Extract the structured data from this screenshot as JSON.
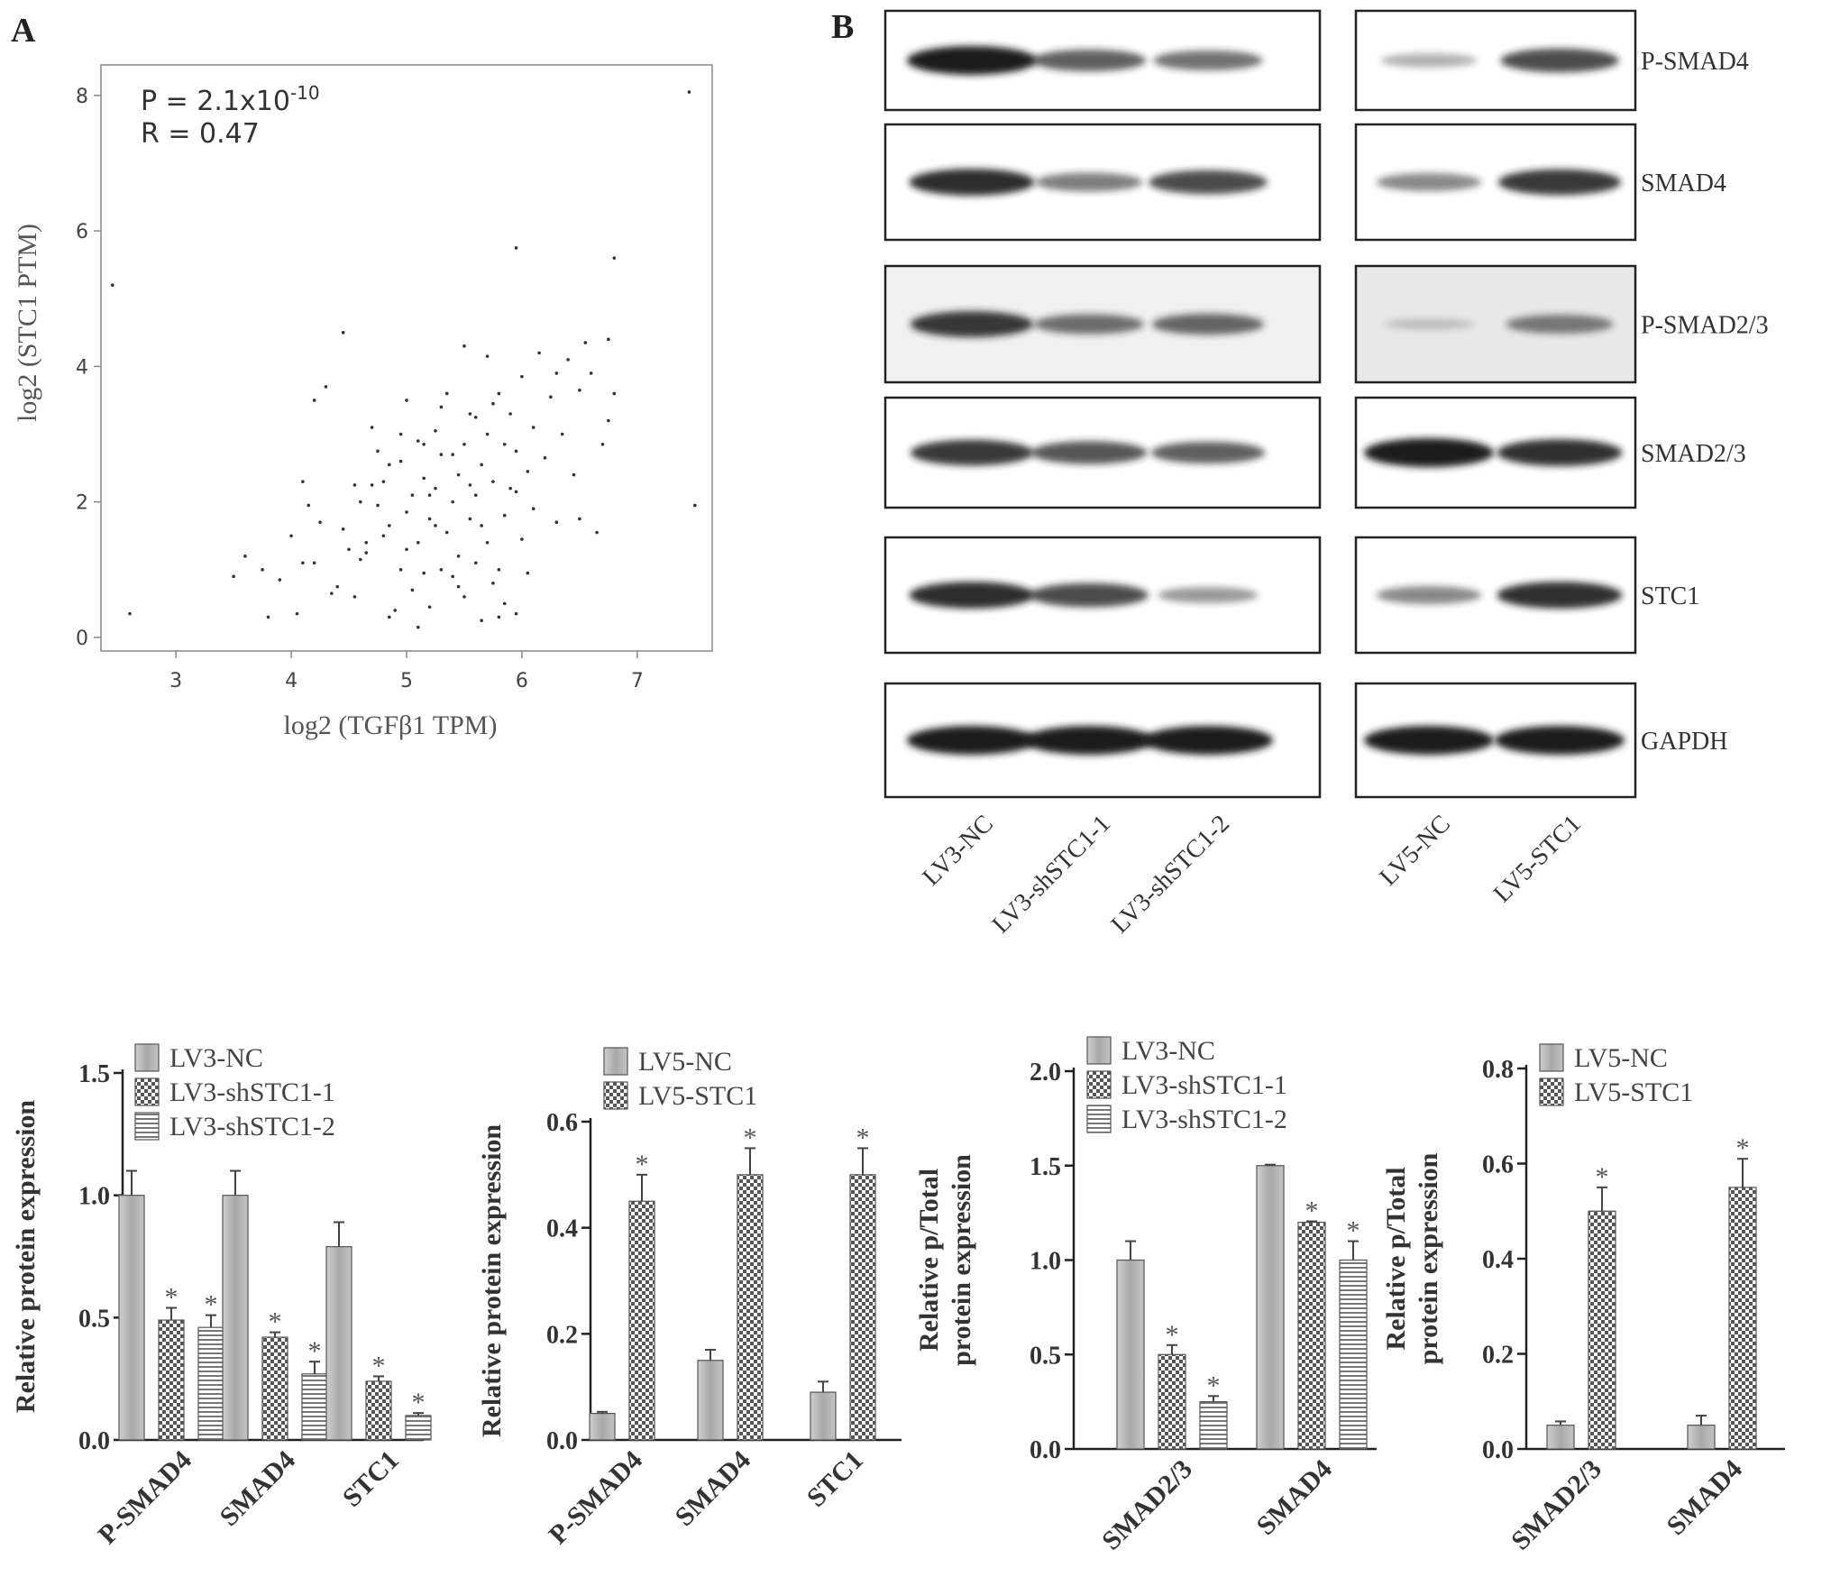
{
  "panels": {
    "a": "A",
    "b": "B"
  },
  "colors": {
    "ink": "#222222",
    "bar_nc": "#b3b3b3",
    "bar_pattern": "#6a6a6a",
    "blot_band": "#1e1e1e"
  },
  "chart_data": [
    {
      "type": "scatter",
      "ylabel": "log2 (STC1 PTM)",
      "xlabel": "log2 (TGFβ1 TPM)",
      "annotations": {
        "p_prefix": "P = 2.1x10",
        "p_exp": "-10",
        "r": "R = 0.47"
      },
      "xlim": [
        2.35,
        7.65
      ],
      "ylim": [
        -0.2,
        8.45
      ],
      "xticks": [
        3,
        4,
        5,
        6,
        7
      ],
      "yticks": [
        0,
        2,
        4,
        6,
        8
      ],
      "points": [
        [
          2.45,
          5.2
        ],
        [
          2.6,
          0.35
        ],
        [
          7.45,
          8.05
        ],
        [
          7.5,
          1.95
        ],
        [
          6.8,
          5.6
        ],
        [
          5.95,
          5.75
        ],
        [
          4.45,
          4.5
        ],
        [
          4.2,
          3.5
        ],
        [
          4.3,
          3.7
        ],
        [
          3.6,
          1.2
        ],
        [
          3.5,
          0.9
        ],
        [
          3.75,
          1.0
        ],
        [
          3.8,
          0.3
        ],
        [
          3.9,
          0.85
        ],
        [
          4.05,
          0.35
        ],
        [
          4.0,
          1.5
        ],
        [
          4.1,
          1.1
        ],
        [
          4.15,
          1.95
        ],
        [
          4.1,
          2.3
        ],
        [
          4.25,
          1.7
        ],
        [
          4.2,
          1.1
        ],
        [
          4.35,
          0.65
        ],
        [
          4.4,
          0.75
        ],
        [
          4.45,
          1.6
        ],
        [
          4.5,
          1.3
        ],
        [
          4.55,
          0.6
        ],
        [
          4.6,
          1.15
        ],
        [
          4.6,
          2.0
        ],
        [
          4.65,
          1.25
        ],
        [
          4.7,
          2.25
        ],
        [
          4.75,
          2.75
        ],
        [
          4.7,
          3.1
        ],
        [
          4.8,
          1.5
        ],
        [
          4.8,
          2.3
        ],
        [
          4.85,
          0.3
        ],
        [
          4.85,
          1.65
        ],
        [
          4.9,
          0.4
        ],
        [
          4.95,
          1.0
        ],
        [
          4.95,
          3.0
        ],
        [
          5.0,
          1.85
        ],
        [
          5.0,
          3.5
        ],
        [
          5.05,
          2.1
        ],
        [
          5.05,
          0.7
        ],
        [
          5.1,
          0.15
        ],
        [
          5.1,
          1.4
        ],
        [
          5.15,
          2.35
        ],
        [
          5.15,
          2.85
        ],
        [
          5.2,
          0.45
        ],
        [
          5.2,
          1.75
        ],
        [
          5.25,
          2.2
        ],
        [
          5.25,
          3.05
        ],
        [
          5.3,
          1.0
        ],
        [
          5.3,
          2.7
        ],
        [
          5.35,
          1.55
        ],
        [
          5.35,
          3.6
        ],
        [
          5.4,
          2.0
        ],
        [
          5.4,
          0.9
        ],
        [
          5.45,
          1.2
        ],
        [
          5.45,
          2.4
        ],
        [
          5.5,
          2.85
        ],
        [
          5.5,
          0.6
        ],
        [
          5.55,
          1.75
        ],
        [
          5.55,
          3.3
        ],
        [
          5.6,
          2.1
        ],
        [
          5.6,
          1.1
        ],
        [
          5.65,
          2.55
        ],
        [
          5.65,
          0.25
        ],
        [
          5.7,
          3.0
        ],
        [
          5.7,
          1.4
        ],
        [
          5.75,
          0.8
        ],
        [
          5.75,
          2.3
        ],
        [
          5.8,
          3.6
        ],
        [
          5.8,
          1.0
        ],
        [
          5.85,
          1.8
        ],
        [
          5.85,
          0.5
        ],
        [
          5.9,
          2.2
        ],
        [
          5.9,
          3.3
        ],
        [
          5.95,
          0.35
        ],
        [
          5.95,
          2.75
        ],
        [
          6.0,
          1.45
        ],
        [
          6.0,
          3.85
        ],
        [
          6.05,
          2.45
        ],
        [
          6.05,
          0.95
        ],
        [
          6.1,
          3.1
        ],
        [
          6.1,
          1.9
        ],
        [
          6.15,
          4.2
        ],
        [
          6.2,
          2.65
        ],
        [
          6.25,
          3.55
        ],
        [
          6.3,
          1.7
        ],
        [
          6.3,
          3.9
        ],
        [
          6.35,
          3.0
        ],
        [
          6.4,
          4.1
        ],
        [
          6.45,
          2.4
        ],
        [
          6.5,
          3.65
        ],
        [
          6.5,
          1.75
        ],
        [
          6.55,
          4.35
        ],
        [
          6.6,
          3.9
        ],
        [
          6.65,
          1.55
        ],
        [
          6.7,
          2.85
        ],
        [
          6.75,
          3.2
        ],
        [
          6.8,
          3.6
        ],
        [
          6.75,
          4.4
        ],
        [
          5.5,
          4.3
        ],
        [
          5.7,
          4.15
        ],
        [
          5.3,
          3.4
        ],
        [
          5.2,
          2.1
        ],
        [
          4.95,
          2.6
        ],
        [
          5.1,
          2.9
        ],
        [
          5.25,
          1.65
        ],
        [
          5.4,
          2.7
        ],
        [
          5.55,
          2.25
        ],
        [
          5.75,
          3.45
        ],
        [
          5.95,
          2.15
        ],
        [
          4.85,
          2.55
        ],
        [
          4.75,
          1.95
        ],
        [
          4.65,
          1.4
        ],
        [
          4.55,
          2.25
        ],
        [
          5.0,
          1.3
        ],
        [
          5.6,
          3.25
        ],
        [
          5.85,
          2.85
        ],
        [
          5.15,
          0.95
        ],
        [
          5.45,
          0.75
        ],
        [
          5.8,
          0.3
        ],
        [
          5.65,
          1.65
        ]
      ]
    },
    {
      "type": "blot",
      "row_labels": [
        "P-SMAD4",
        "SMAD4",
        "P-SMAD2/3",
        "SMAD2/3",
        "STC1",
        "GAPDH"
      ],
      "lanes_left": [
        "LV3-NC",
        "LV3-shSTC1-1",
        "LV3-shSTC1-2"
      ],
      "lanes_right": [
        "LV5-NC",
        "LV5-STC1"
      ],
      "band_intensity_left": [
        [
          1.0,
          0.65,
          0.55
        ],
        [
          0.9,
          0.5,
          0.75
        ],
        [
          0.85,
          0.55,
          0.6
        ],
        [
          0.85,
          0.7,
          0.65
        ],
        [
          0.9,
          0.75,
          0.35
        ],
        [
          1.0,
          1.0,
          1.0
        ]
      ],
      "band_intensity_right": [
        [
          0.25,
          0.75
        ],
        [
          0.45,
          0.85
        ],
        [
          0.1,
          0.5
        ],
        [
          1.0,
          0.9
        ],
        [
          0.45,
          0.9
        ],
        [
          1.0,
          1.0
        ]
      ]
    },
    {
      "type": "bar",
      "ylabel": "Relative  protein expression",
      "categories": [
        "P-SMAD4",
        "SMAD4",
        "STC1"
      ],
      "series": [
        {
          "name": "LV3-NC",
          "values": [
            1.0,
            1.0,
            0.79
          ],
          "errors": [
            0.1,
            0.1,
            0.1
          ],
          "sig": [
            false,
            false,
            false
          ]
        },
        {
          "name": "LV3-shSTC1-1",
          "values": [
            0.49,
            0.42,
            0.24
          ],
          "errors": [
            0.05,
            0.02,
            0.02
          ],
          "sig": [
            true,
            true,
            true
          ]
        },
        {
          "name": "LV3-shSTC1-2",
          "values": [
            0.46,
            0.27,
            0.1
          ],
          "errors": [
            0.05,
            0.05,
            0.01
          ],
          "sig": [
            true,
            true,
            true
          ]
        }
      ],
      "ylim": [
        0,
        1.5
      ],
      "yticks": [
        "0.0",
        "0.5",
        "1.0",
        "1.5"
      ],
      "sig_marker": "*"
    },
    {
      "type": "bar",
      "ylabel": "Relative  protein expression",
      "categories": [
        "P-SMAD4",
        "SMAD4",
        "STC1"
      ],
      "series": [
        {
          "name": "LV5-NC",
          "values": [
            0.05,
            0.15,
            0.09
          ],
          "errors": [
            0.003,
            0.02,
            0.02
          ],
          "sig": [
            false,
            false,
            false
          ]
        },
        {
          "name": "LV5-STC1",
          "values": [
            0.45,
            0.5,
            0.5
          ],
          "errors": [
            0.05,
            0.05,
            0.05
          ],
          "sig": [
            true,
            true,
            true
          ]
        }
      ],
      "ylim": [
        0,
        0.6
      ],
      "yticks": [
        "0.0",
        "0.2",
        "0.4",
        "0.6"
      ],
      "sig_marker": "*"
    },
    {
      "type": "bar",
      "ylabel_lines": [
        "Relative  p/Total",
        "protein expression"
      ],
      "categories": [
        "SMAD2/3",
        "SMAD4"
      ],
      "series": [
        {
          "name": "LV3-NC",
          "values": [
            1.0,
            1.5
          ],
          "errors": [
            0.1,
            0.005
          ],
          "sig": [
            false,
            false
          ]
        },
        {
          "name": "LV3-shSTC1-1",
          "values": [
            0.5,
            1.2
          ],
          "errors": [
            0.05,
            0.005
          ],
          "sig": [
            true,
            true
          ]
        },
        {
          "name": "LV3-shSTC1-2",
          "values": [
            0.25,
            1.0
          ],
          "errors": [
            0.03,
            0.1
          ],
          "sig": [
            true,
            true
          ]
        }
      ],
      "ylim": [
        0,
        2.0
      ],
      "yticks": [
        "0.0",
        "0.5",
        "1.0",
        "1.5",
        "2.0"
      ],
      "sig_marker": "*"
    },
    {
      "type": "bar",
      "ylabel_lines": [
        "Relative  p/Total",
        "protein expression"
      ],
      "categories": [
        "SMAD2/3",
        "SMAD4"
      ],
      "series": [
        {
          "name": "LV5-NC",
          "values": [
            0.05,
            0.05
          ],
          "errors": [
            0.008,
            0.02
          ],
          "sig": [
            false,
            false
          ]
        },
        {
          "name": "LV5-STC1",
          "values": [
            0.5,
            0.55
          ],
          "errors": [
            0.05,
            0.06
          ],
          "sig": [
            true,
            true
          ]
        }
      ],
      "ylim": [
        0,
        0.8
      ],
      "yticks": [
        "0.0",
        "0.2",
        "0.4",
        "0.6",
        "0.8"
      ],
      "sig_marker": "*"
    }
  ]
}
